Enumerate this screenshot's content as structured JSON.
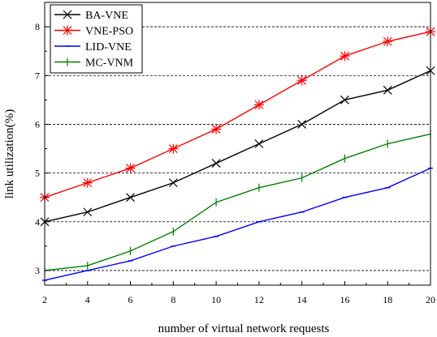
{
  "chart_data": {
    "type": "line",
    "title": "",
    "xlabel": "number of virtual network requests",
    "ylabel": "link utilization(%)",
    "x": [
      2,
      4,
      6,
      8,
      10,
      12,
      14,
      16,
      18,
      20
    ],
    "xlim": [
      2,
      20
    ],
    "ylim": [
      2.7,
      8.5
    ],
    "xticks": [
      2,
      4,
      6,
      8,
      10,
      12,
      14,
      16,
      18,
      20
    ],
    "yticks": [
      3,
      4,
      5,
      6,
      7,
      8
    ],
    "grid": "horizontal dashed",
    "legend_position": "top-left",
    "series": [
      {
        "name": "BA-VNE",
        "color": "#000000",
        "marker": "x",
        "values": [
          4.0,
          4.2,
          4.5,
          4.8,
          5.2,
          5.6,
          6.0,
          6.5,
          6.7,
          7.1
        ]
      },
      {
        "name": "VNE-PSO",
        "color": "#ff0000",
        "marker": "star",
        "values": [
          4.5,
          4.8,
          5.1,
          5.5,
          5.9,
          6.4,
          6.9,
          7.4,
          7.7,
          7.9
        ]
      },
      {
        "name": "LID-VNE",
        "color": "#0000ff",
        "marker": "dash",
        "values": [
          2.8,
          3.0,
          3.2,
          3.5,
          3.7,
          4.0,
          4.2,
          4.5,
          4.7,
          5.1
        ]
      },
      {
        "name": "MC-VNM",
        "color": "#008000",
        "marker": "plus",
        "values": [
          3.0,
          3.1,
          3.4,
          3.8,
          4.4,
          4.7,
          4.9,
          5.3,
          5.6,
          5.8
        ]
      }
    ]
  }
}
